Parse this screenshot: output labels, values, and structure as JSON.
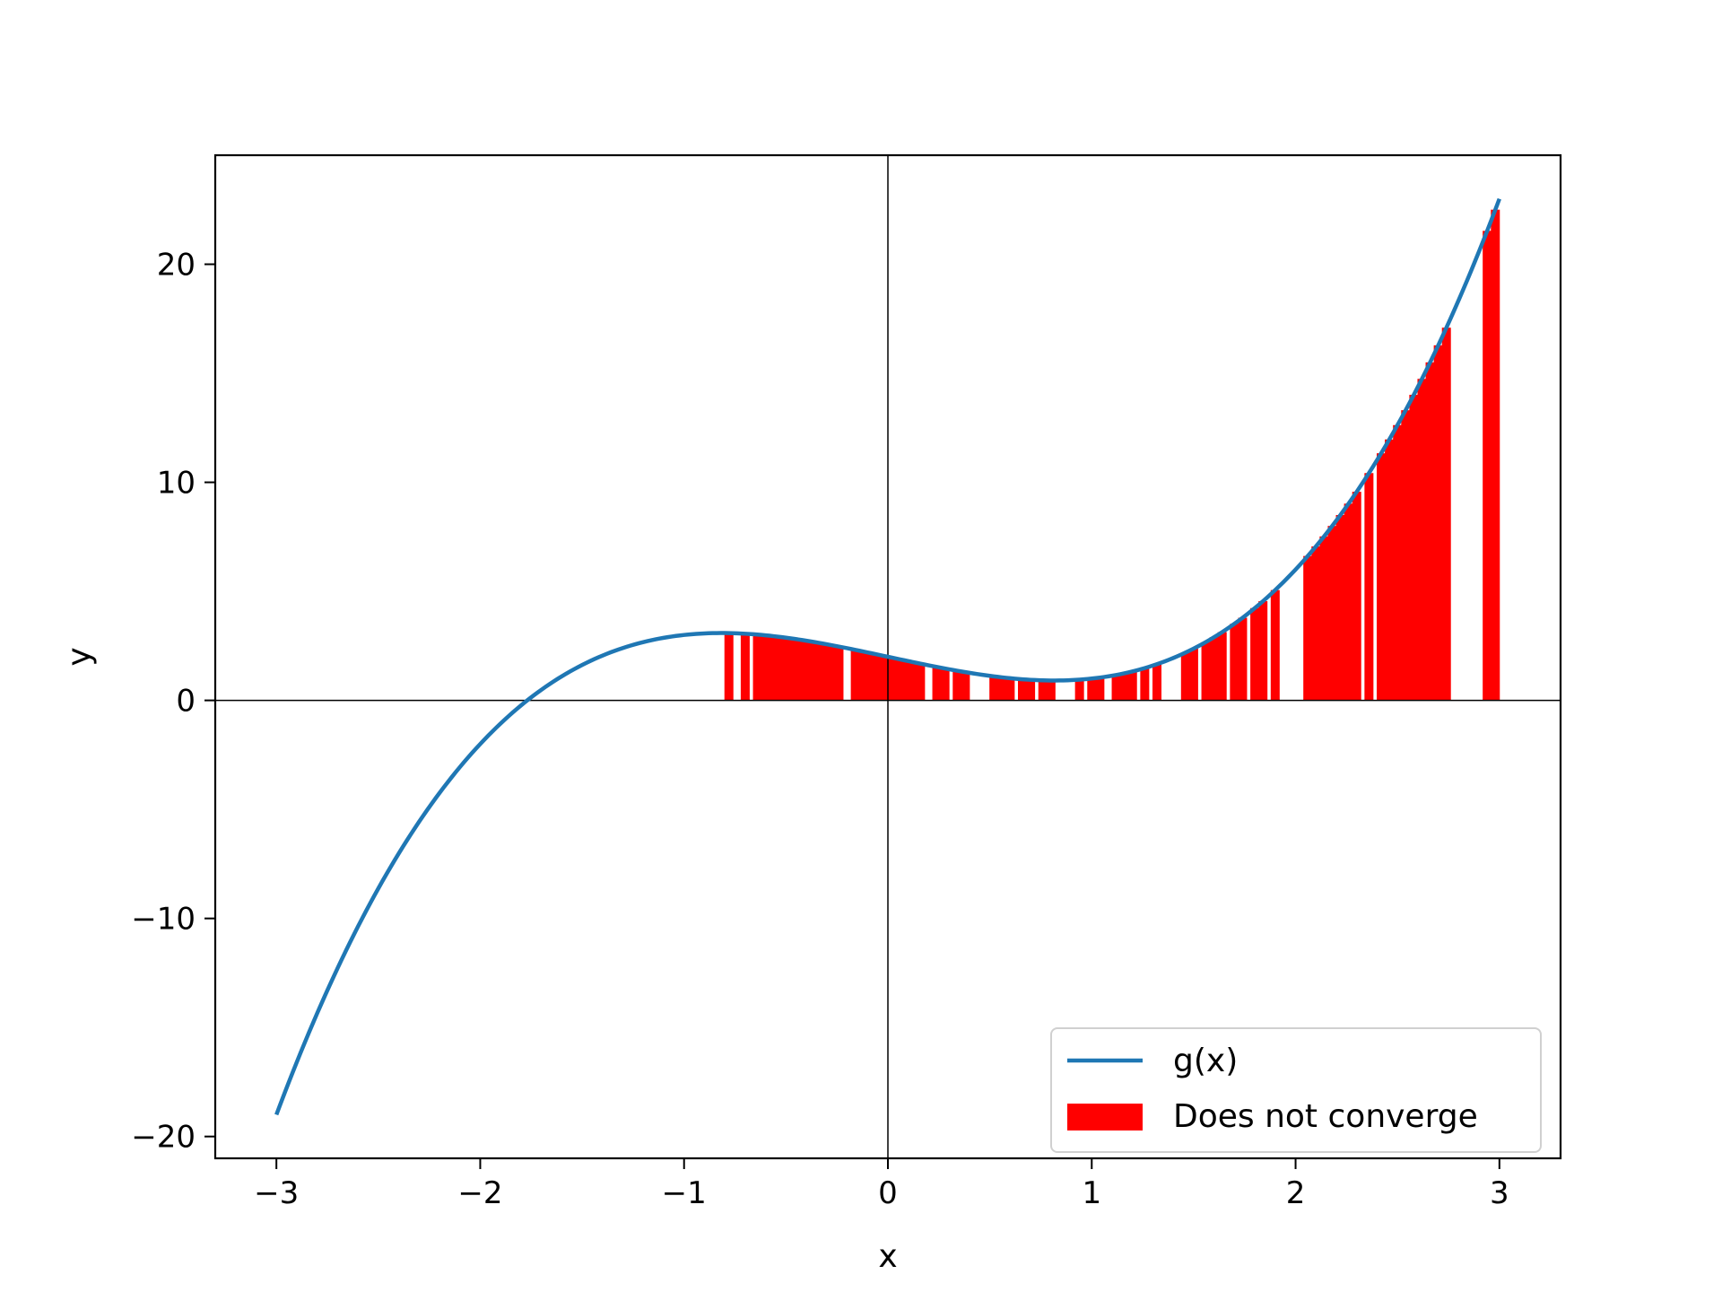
{
  "chart_data": {
    "type": "line",
    "title": "",
    "xlabel": "x",
    "ylabel": "y",
    "xlim": [
      -3.3,
      3.3
    ],
    "ylim": [
      -21,
      25
    ],
    "xticks": [
      -3,
      -2,
      -1,
      0,
      1,
      2,
      3
    ],
    "xtick_labels": [
      "−3",
      "−2",
      "−1",
      "0",
      "1",
      "2",
      "3"
    ],
    "yticks": [
      -20,
      -10,
      0,
      10,
      20
    ],
    "ytick_labels": [
      "−20",
      "−10",
      "0",
      "10",
      "20"
    ],
    "grid": false,
    "reference_lines": {
      "x": 0,
      "y": 0
    },
    "legend": {
      "placement": "lower-right"
    },
    "series": [
      {
        "name": "g(x)",
        "kind": "line",
        "color": "#1f77b4",
        "function": "x^3 - 2x + 2",
        "x_range": [
          -3,
          3
        ]
      },
      {
        "name": "Does not converge",
        "kind": "bars-to-curve",
        "color": "#ff0000",
        "x": [
          -0.78,
          -0.7,
          -0.64,
          -0.6,
          -0.56,
          -0.52,
          -0.48,
          -0.44,
          -0.4,
          -0.36,
          -0.32,
          -0.28,
          -0.24,
          -0.16,
          -0.12,
          -0.08,
          -0.04,
          0.0,
          0.04,
          0.08,
          0.12,
          0.16,
          0.24,
          0.28,
          0.34,
          0.38,
          0.52,
          0.56,
          0.6,
          0.66,
          0.7,
          0.76,
          0.8,
          0.94,
          1.0,
          1.04,
          1.12,
          1.16,
          1.2,
          1.26,
          1.32,
          1.46,
          1.5,
          1.56,
          1.6,
          1.64,
          1.7,
          1.74,
          1.8,
          1.84,
          1.9,
          2.06,
          2.1,
          2.14,
          2.18,
          2.22,
          2.26,
          2.3,
          2.36,
          2.42,
          2.46,
          2.5,
          2.54,
          2.58,
          2.62,
          2.66,
          2.7,
          2.74,
          2.94,
          2.98
        ]
      }
    ]
  }
}
